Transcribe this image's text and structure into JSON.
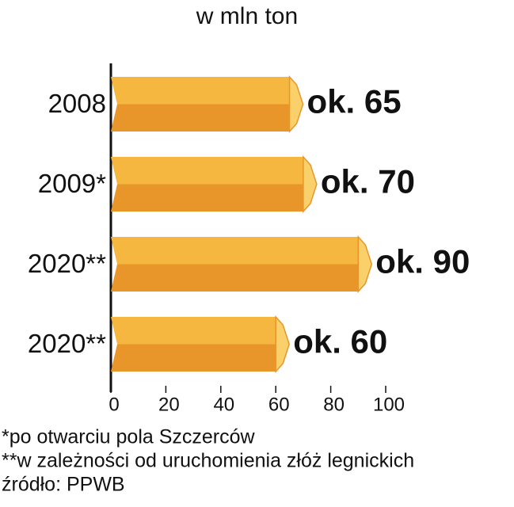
{
  "chart_data": {
    "type": "bar",
    "orientation": "horizontal",
    "title": "w mln ton",
    "categories": [
      "2008",
      "2009*",
      "2020**",
      "2020**"
    ],
    "values": [
      65,
      70,
      90,
      60
    ],
    "value_labels": [
      "ok. 65",
      "ok. 70",
      "ok. 90",
      "ok. 60"
    ],
    "colors": {
      "top": "#f5b73f",
      "bottom": "#e8962a",
      "cap": "#f9d06a"
    },
    "xlim": [
      0,
      100
    ],
    "xticks": [
      0,
      20,
      40,
      60,
      80,
      100
    ],
    "footnotes": [
      "*po otwarciu pola Szczerców",
      "**w zależności od uruchomienia złóż legnickich",
      "źródło: PPWB"
    ]
  }
}
